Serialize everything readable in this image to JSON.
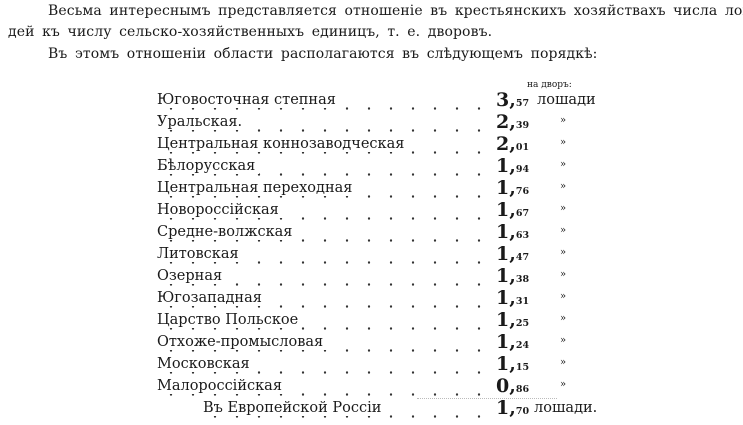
{
  "paragraphs": [
    "Весьма интереснымъ представляется отношеніе въ крестьянскихъ хозяйствахъ числа лоша-",
    "дей къ числу сельско-хозяйственныхъ единицъ, т. е. дворовъ.",
    "Въ этомъ отношеніи области располагаются въ слѣдующемъ порядкѣ:"
  ],
  "table": {
    "column_header": "на дворъ:",
    "unit": "лошади",
    "ditto": "»",
    "rows": [
      {
        "name": "Юговосточная степная",
        "int": "3,",
        "frac": "57"
      },
      {
        "name": "Уральская.",
        "int": "2,",
        "frac": "39"
      },
      {
        "name": "Центральная коннозаводческая",
        "int": "2,",
        "frac": "01"
      },
      {
        "name": "Бѣлорусская",
        "int": "1,",
        "frac": "94"
      },
      {
        "name": "Центральная переходная",
        "int": "1,",
        "frac": "76"
      },
      {
        "name": "Новороссійская",
        "int": "1,",
        "frac": "67"
      },
      {
        "name": "Средне-волжская",
        "int": "1,",
        "frac": "63"
      },
      {
        "name": "Литовская",
        "int": "1,",
        "frac": "47"
      },
      {
        "name": "Озерная",
        "int": "1,",
        "frac": "38"
      },
      {
        "name": "Югозападная",
        "int": "1,",
        "frac": "31"
      },
      {
        "name": "Царство Польское",
        "int": "1,",
        "frac": "25"
      },
      {
        "name": "Отхоже-промысловая",
        "int": "1,",
        "frac": "24"
      },
      {
        "name": "Московская",
        "int": "1,",
        "frac": "15"
      },
      {
        "name": "Малороссійская",
        "int": "0,",
        "frac": "86"
      }
    ],
    "total": {
      "name": "Въ Европейской Россіи",
      "int": "1,",
      "frac": "70",
      "unit": "лошади."
    }
  }
}
